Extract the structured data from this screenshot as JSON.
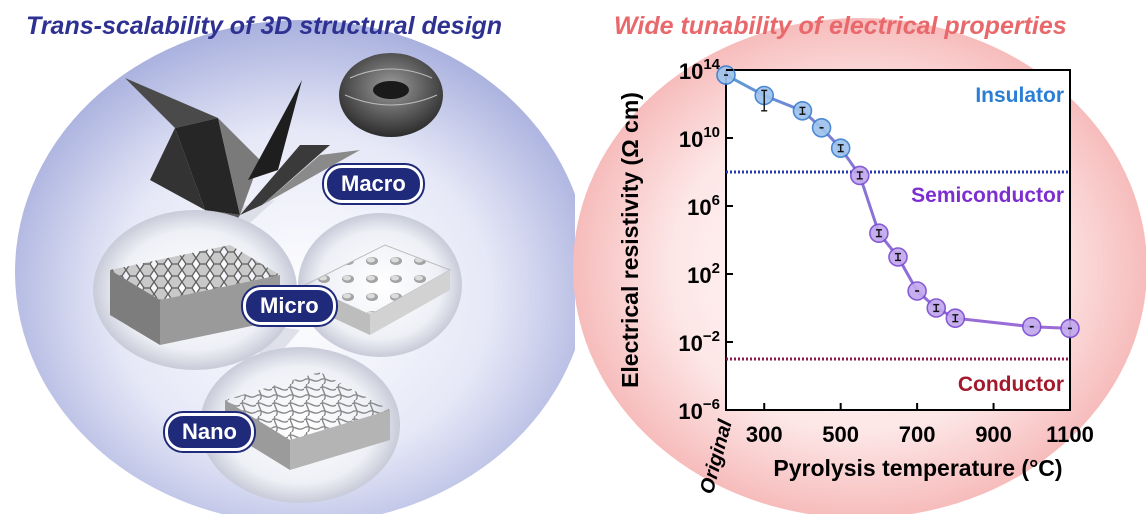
{
  "left_panel": {
    "title": "Trans-scalability of 3D structural design",
    "scales": {
      "macro": "Macro",
      "micro": "Micro",
      "nano": "Nano"
    }
  },
  "right_panel": {
    "title": "Wide tunability of electrical properties"
  },
  "colors": {
    "left_title": "#2e3192",
    "right_title": "#e8686b",
    "badge": "#1f2a7a",
    "insulator": "#2a7fd4",
    "semiconductor": "#7b2fd0",
    "conductor": "#a3192c"
  },
  "chart_data": {
    "type": "line",
    "xlabel": "Pyrolysis temperature (°C)",
    "ylabel": "Electrical resistivity (Ω cm)",
    "y_scale": "log",
    "xlim": [
      200,
      1100
    ],
    "ylim_exponent": [
      -6,
      14
    ],
    "x_ticks": [
      {
        "value": 200,
        "label": "Original"
      },
      {
        "value": 300,
        "label": "300"
      },
      {
        "value": 500,
        "label": "500"
      },
      {
        "value": 700,
        "label": "700"
      },
      {
        "value": 900,
        "label": "900"
      },
      {
        "value": 1100,
        "label": "1100"
      }
    ],
    "y_ticks": [
      {
        "exponent": 14,
        "base": "10",
        "exp": "14"
      },
      {
        "exponent": 10,
        "base": "10",
        "exp": "10"
      },
      {
        "exponent": 6,
        "base": "10",
        "exp": "6"
      },
      {
        "exponent": 2,
        "base": "10",
        "exp": "2"
      },
      {
        "exponent": -2,
        "base": "10",
        "exp": "−2"
      },
      {
        "exponent": -6,
        "base": "10",
        "exp": "−6"
      }
    ],
    "series": [
      {
        "points": [
          {
            "x": 200,
            "log10_y": 13.7
          },
          {
            "x": 300,
            "log10_y": 12.5,
            "err_low": 11.6,
            "err_high": 12.8
          },
          {
            "x": 400,
            "log10_y": 11.6,
            "err_low": 11.4,
            "err_high": 11.8
          },
          {
            "x": 450,
            "log10_y": 10.6
          },
          {
            "x": 500,
            "log10_y": 9.4,
            "err_low": 9.2,
            "err_high": 9.6
          },
          {
            "x": 550,
            "log10_y": 7.8,
            "err_low": 7.6,
            "err_high": 8.0
          },
          {
            "x": 600,
            "log10_y": 4.4,
            "err_low": 4.2,
            "err_high": 4.6
          },
          {
            "x": 650,
            "log10_y": 3.0,
            "err_low": 2.8,
            "err_high": 3.2
          },
          {
            "x": 700,
            "log10_y": 1.0
          },
          {
            "x": 750,
            "log10_y": 0.0,
            "err_low": -0.2,
            "err_high": 0.2
          },
          {
            "x": 800,
            "log10_y": -0.6,
            "err_low": -0.8,
            "err_high": -0.4
          },
          {
            "x": 1000,
            "log10_y": -1.1
          },
          {
            "x": 1100,
            "log10_y": -1.2
          }
        ]
      }
    ],
    "thresholds": [
      {
        "log10_y": 8.0,
        "color": "#2a3ab0"
      },
      {
        "log10_y": -3.0,
        "color": "#8b1a4a"
      }
    ],
    "region_labels": [
      {
        "text": "Insulator",
        "log10_y": 12.6,
        "color": "#2a7fd4"
      },
      {
        "text": "Semiconductor",
        "log10_y": 6.7,
        "color": "#7b2fd0"
      },
      {
        "text": "Conductor",
        "log10_y": -4.4,
        "color": "#a3192c"
      }
    ]
  }
}
